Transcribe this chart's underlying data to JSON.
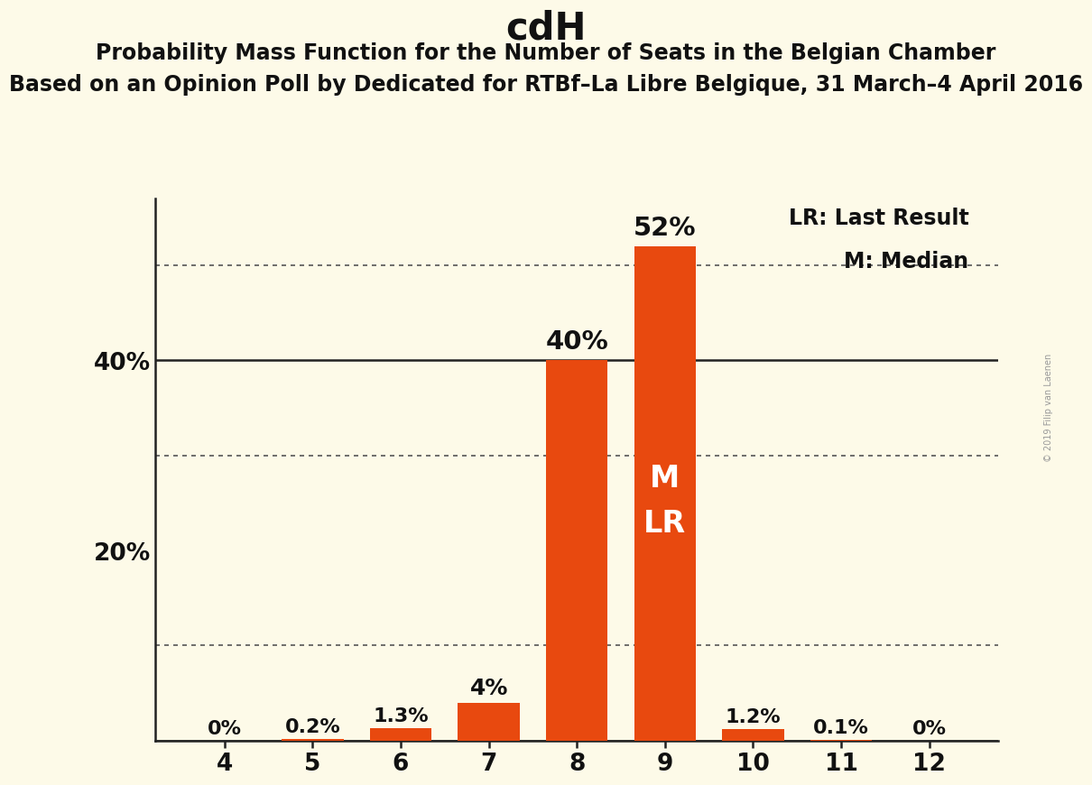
{
  "title": "cdH",
  "subtitle1": "Probability Mass Function for the Number of Seats in the Belgian Chamber",
  "subtitle2": "Based on an Opinion Poll by Dedicated for RTBf–La Libre Belgique, 31 March–4 April 2016",
  "watermark": "© 2019 Filip van Laenen",
  "categories": [
    4,
    5,
    6,
    7,
    8,
    9,
    10,
    11,
    12
  ],
  "values": [
    0.0,
    0.2,
    1.3,
    4.0,
    40.0,
    52.0,
    1.2,
    0.1,
    0.0
  ],
  "bar_color": "#E8490F",
  "background_color": "#FDFAE8",
  "bar_labels": [
    "0%",
    "0.2%",
    "1.3%",
    "4%",
    "40%",
    "52%",
    "1.2%",
    "0.1%",
    "0%"
  ],
  "median_seat": 9,
  "last_result_seat": 9,
  "solid_line_y": [
    0,
    40
  ],
  "dotted_line_y": [
    10,
    30,
    50
  ],
  "legend_text1": "LR: Last Result",
  "legend_text2": "M: Median",
  "ylim": [
    0,
    57
  ],
  "title_fontsize": 30,
  "subtitle1_fontsize": 17,
  "subtitle2_fontsize": 17,
  "bar_label_fontsize": 16,
  "axis_tick_fontsize": 19,
  "ytick_label_fontsize": 19,
  "legend_fontsize": 17,
  "ml_fontsize": 24
}
